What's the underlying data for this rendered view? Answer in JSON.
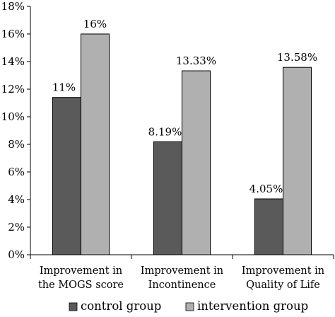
{
  "chart_data": {
    "type": "bar",
    "categories": [
      [
        "Improvement in",
        "the MOGS score"
      ],
      [
        "Improvement in",
        "Incontinence"
      ],
      [
        "Improvement in",
        "Quality of Life"
      ]
    ],
    "series": [
      {
        "name": "control group",
        "color": "#5a5a5a",
        "values": [
          11.4,
          8.19,
          4.05
        ],
        "labels": [
          "11%",
          "8.19%",
          "4.05%"
        ]
      },
      {
        "name": "intervention group",
        "color": "#b0b0b0",
        "values": [
          16,
          13.33,
          13.58
        ],
        "labels": [
          "16%",
          "13.33%",
          "13.58%"
        ]
      }
    ],
    "yticks": [
      "0%",
      "2%",
      "4%",
      "6%",
      "8%",
      "10%",
      "12%",
      "14%",
      "16%",
      "18%"
    ],
    "ylim": [
      0,
      18
    ],
    "ytick_step": 2,
    "grid": false,
    "legend_position": "bottom",
    "title": "",
    "xlabel": "",
    "ylabel": ""
  }
}
